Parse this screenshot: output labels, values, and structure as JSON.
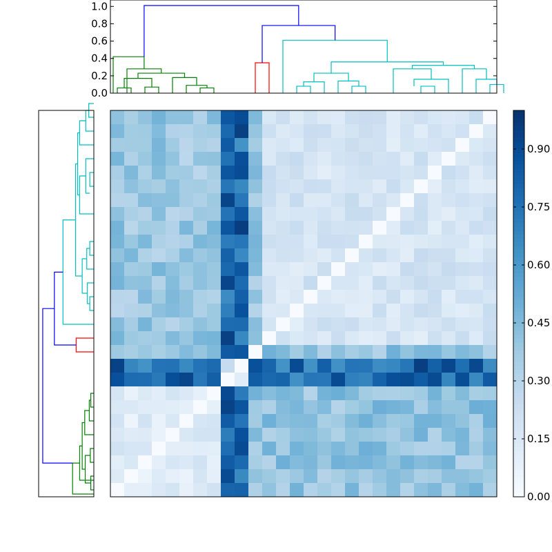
{
  "chart_data": [
    {
      "type": "dendrogram",
      "orientation": "top",
      "ylim": [
        0,
        1.05
      ],
      "yticks": [
        "0.0",
        "0.2",
        "0.4",
        "0.6",
        "0.8",
        "1.0"
      ],
      "colors": {
        "green": "#008000",
        "red": "#ff0000",
        "cyan": "#00bfbf",
        "root": "#0000ff"
      },
      "links": [
        {
          "x": [
            0.5,
            0.5,
            1.5,
            1.5
          ],
          "y": [
            0.0,
            0.06,
            0.06,
            0.0
          ],
          "color": "green"
        },
        {
          "x": [
            2.5,
            2.5,
            3.5,
            3.5
          ],
          "y": [
            0.0,
            0.07,
            0.07,
            0.0
          ],
          "color": "green"
        },
        {
          "x": [
            1.0,
            1.0,
            3.0,
            3.0
          ],
          "y": [
            0.06,
            0.17,
            0.17,
            0.07
          ],
          "color": "green"
        },
        {
          "x": [
            6.5,
            6.5,
            7.5,
            7.5
          ],
          "y": [
            0.0,
            0.06,
            0.06,
            0.0
          ],
          "color": "green"
        },
        {
          "x": [
            5.5,
            5.5,
            7.0,
            7.0
          ],
          "y": [
            0.0,
            0.09,
            0.09,
            0.06
          ],
          "color": "green"
        },
        {
          "x": [
            4.5,
            4.5,
            6.25,
            6.25
          ],
          "y": [
            0.0,
            0.18,
            0.18,
            0.09
          ],
          "color": "green"
        },
        {
          "x": [
            2.0,
            2.0,
            5.375,
            5.375
          ],
          "y": [
            0.17,
            0.23,
            0.23,
            0.18
          ],
          "color": "green"
        },
        {
          "x": [
            1.2,
            1.2,
            3.6875,
            3.6875
          ],
          "y": [
            0.0,
            0.28,
            0.28,
            0.23
          ],
          "color": "green"
        },
        {
          "x": [
            0.2,
            0.2,
            2.44375,
            2.44375
          ],
          "y": [
            0.0,
            0.42,
            0.42,
            0.28
          ],
          "color": "green"
        },
        {
          "x": [
            10.5,
            10.5,
            11.5,
            11.5
          ],
          "y": [
            0.0,
            0.35,
            0.35,
            0.0
          ],
          "color": "red"
        },
        {
          "x": [
            13.5,
            13.5,
            14.5,
            14.5
          ],
          "y": [
            0.0,
            0.08,
            0.08,
            0.0
          ],
          "color": "cyan"
        },
        {
          "x": [
            14.0,
            14.0,
            15.5,
            15.5
          ],
          "y": [
            0.08,
            0.13,
            0.13,
            0.0
          ],
          "color": "cyan"
        },
        {
          "x": [
            17.5,
            17.5,
            18.5,
            18.5
          ],
          "y": [
            0.0,
            0.08,
            0.08,
            0.0
          ],
          "color": "cyan"
        },
        {
          "x": [
            16.5,
            16.5,
            18.0,
            18.0
          ],
          "y": [
            0.0,
            0.14,
            0.14,
            0.08
          ],
          "color": "cyan"
        },
        {
          "x": [
            14.75,
            14.75,
            17.25,
            17.25
          ],
          "y": [
            0.13,
            0.23,
            0.23,
            0.14
          ],
          "color": "cyan"
        },
        {
          "x": [
            22.5,
            22.5,
            23.5,
            23.5
          ],
          "y": [
            0.0,
            0.08,
            0.08,
            0.0
          ],
          "color": "cyan"
        },
        {
          "x": [
            22.0,
            22.0,
            24.5,
            24.5
          ],
          "y": [
            0.08,
            0.16,
            0.16,
            0.0
          ],
          "color": "cyan"
        },
        {
          "x": [
            20.5,
            20.5,
            23.25,
            23.25
          ],
          "y": [
            0.0,
            0.28,
            0.28,
            0.16
          ],
          "color": "cyan"
        },
        {
          "x": [
            27.5,
            27.5,
            28.5,
            28.5
          ],
          "y": [
            0.0,
            0.1,
            0.1,
            0.0
          ],
          "color": "cyan"
        },
        {
          "x": [
            26.5,
            26.5,
            28.0,
            28.0
          ],
          "y": [
            0.0,
            0.16,
            0.16,
            0.1
          ],
          "color": "cyan"
        },
        {
          "x": [
            25.5,
            25.5,
            27.25,
            27.25
          ],
          "y": [
            0.0,
            0.28,
            0.28,
            0.16
          ],
          "color": "cyan"
        },
        {
          "x": [
            21.875,
            21.875,
            26.375,
            26.375
          ],
          "y": [
            0.28,
            0.32,
            0.32,
            0.28
          ],
          "color": "cyan"
        },
        {
          "x": [
            16.0,
            16.0,
            24.125,
            24.125
          ],
          "y": [
            0.23,
            0.36,
            0.36,
            0.32
          ],
          "color": "cyan"
        },
        {
          "x": [
            12.5,
            12.5,
            20.0625,
            20.0625
          ],
          "y": [
            0.0,
            0.61,
            0.61,
            0.36
          ],
          "color": "cyan"
        },
        {
          "x": [
            11.0,
            11.0,
            16.28125,
            16.28125
          ],
          "y": [
            0.35,
            0.78,
            0.78,
            0.61
          ],
          "color": "root"
        },
        {
          "x": [
            2.44375,
            2.44375,
            13.640625,
            13.640625
          ],
          "y": [
            0.42,
            1.01,
            1.01,
            0.78
          ],
          "color": "root"
        }
      ]
    },
    {
      "type": "heatmap",
      "rows": 28,
      "cols": 28,
      "colormap": "Blues",
      "vmin": 0.0,
      "vmax": 1.0,
      "colorbar_ticks": [
        "0.00",
        "0.15",
        "0.30",
        "0.45",
        "0.60",
        "0.75",
        "0.90"
      ],
      "diagonal": "anti",
      "special_rows": [
        18,
        19
      ],
      "special_cols": [
        8,
        9
      ],
      "ranges": {
        "special_cross": [
          0.62,
          0.95
        ],
        "top_group": [
          0.28,
          0.48
        ],
        "bottom_group": [
          0.05,
          0.2
        ],
        "cyan_block": [
          0.1,
          0.25
        ],
        "cross_group": [
          0.3,
          0.5
        ]
      }
    },
    {
      "type": "dendrogram",
      "orientation": "left",
      "links_source": "same as top dendrogram"
    }
  ]
}
